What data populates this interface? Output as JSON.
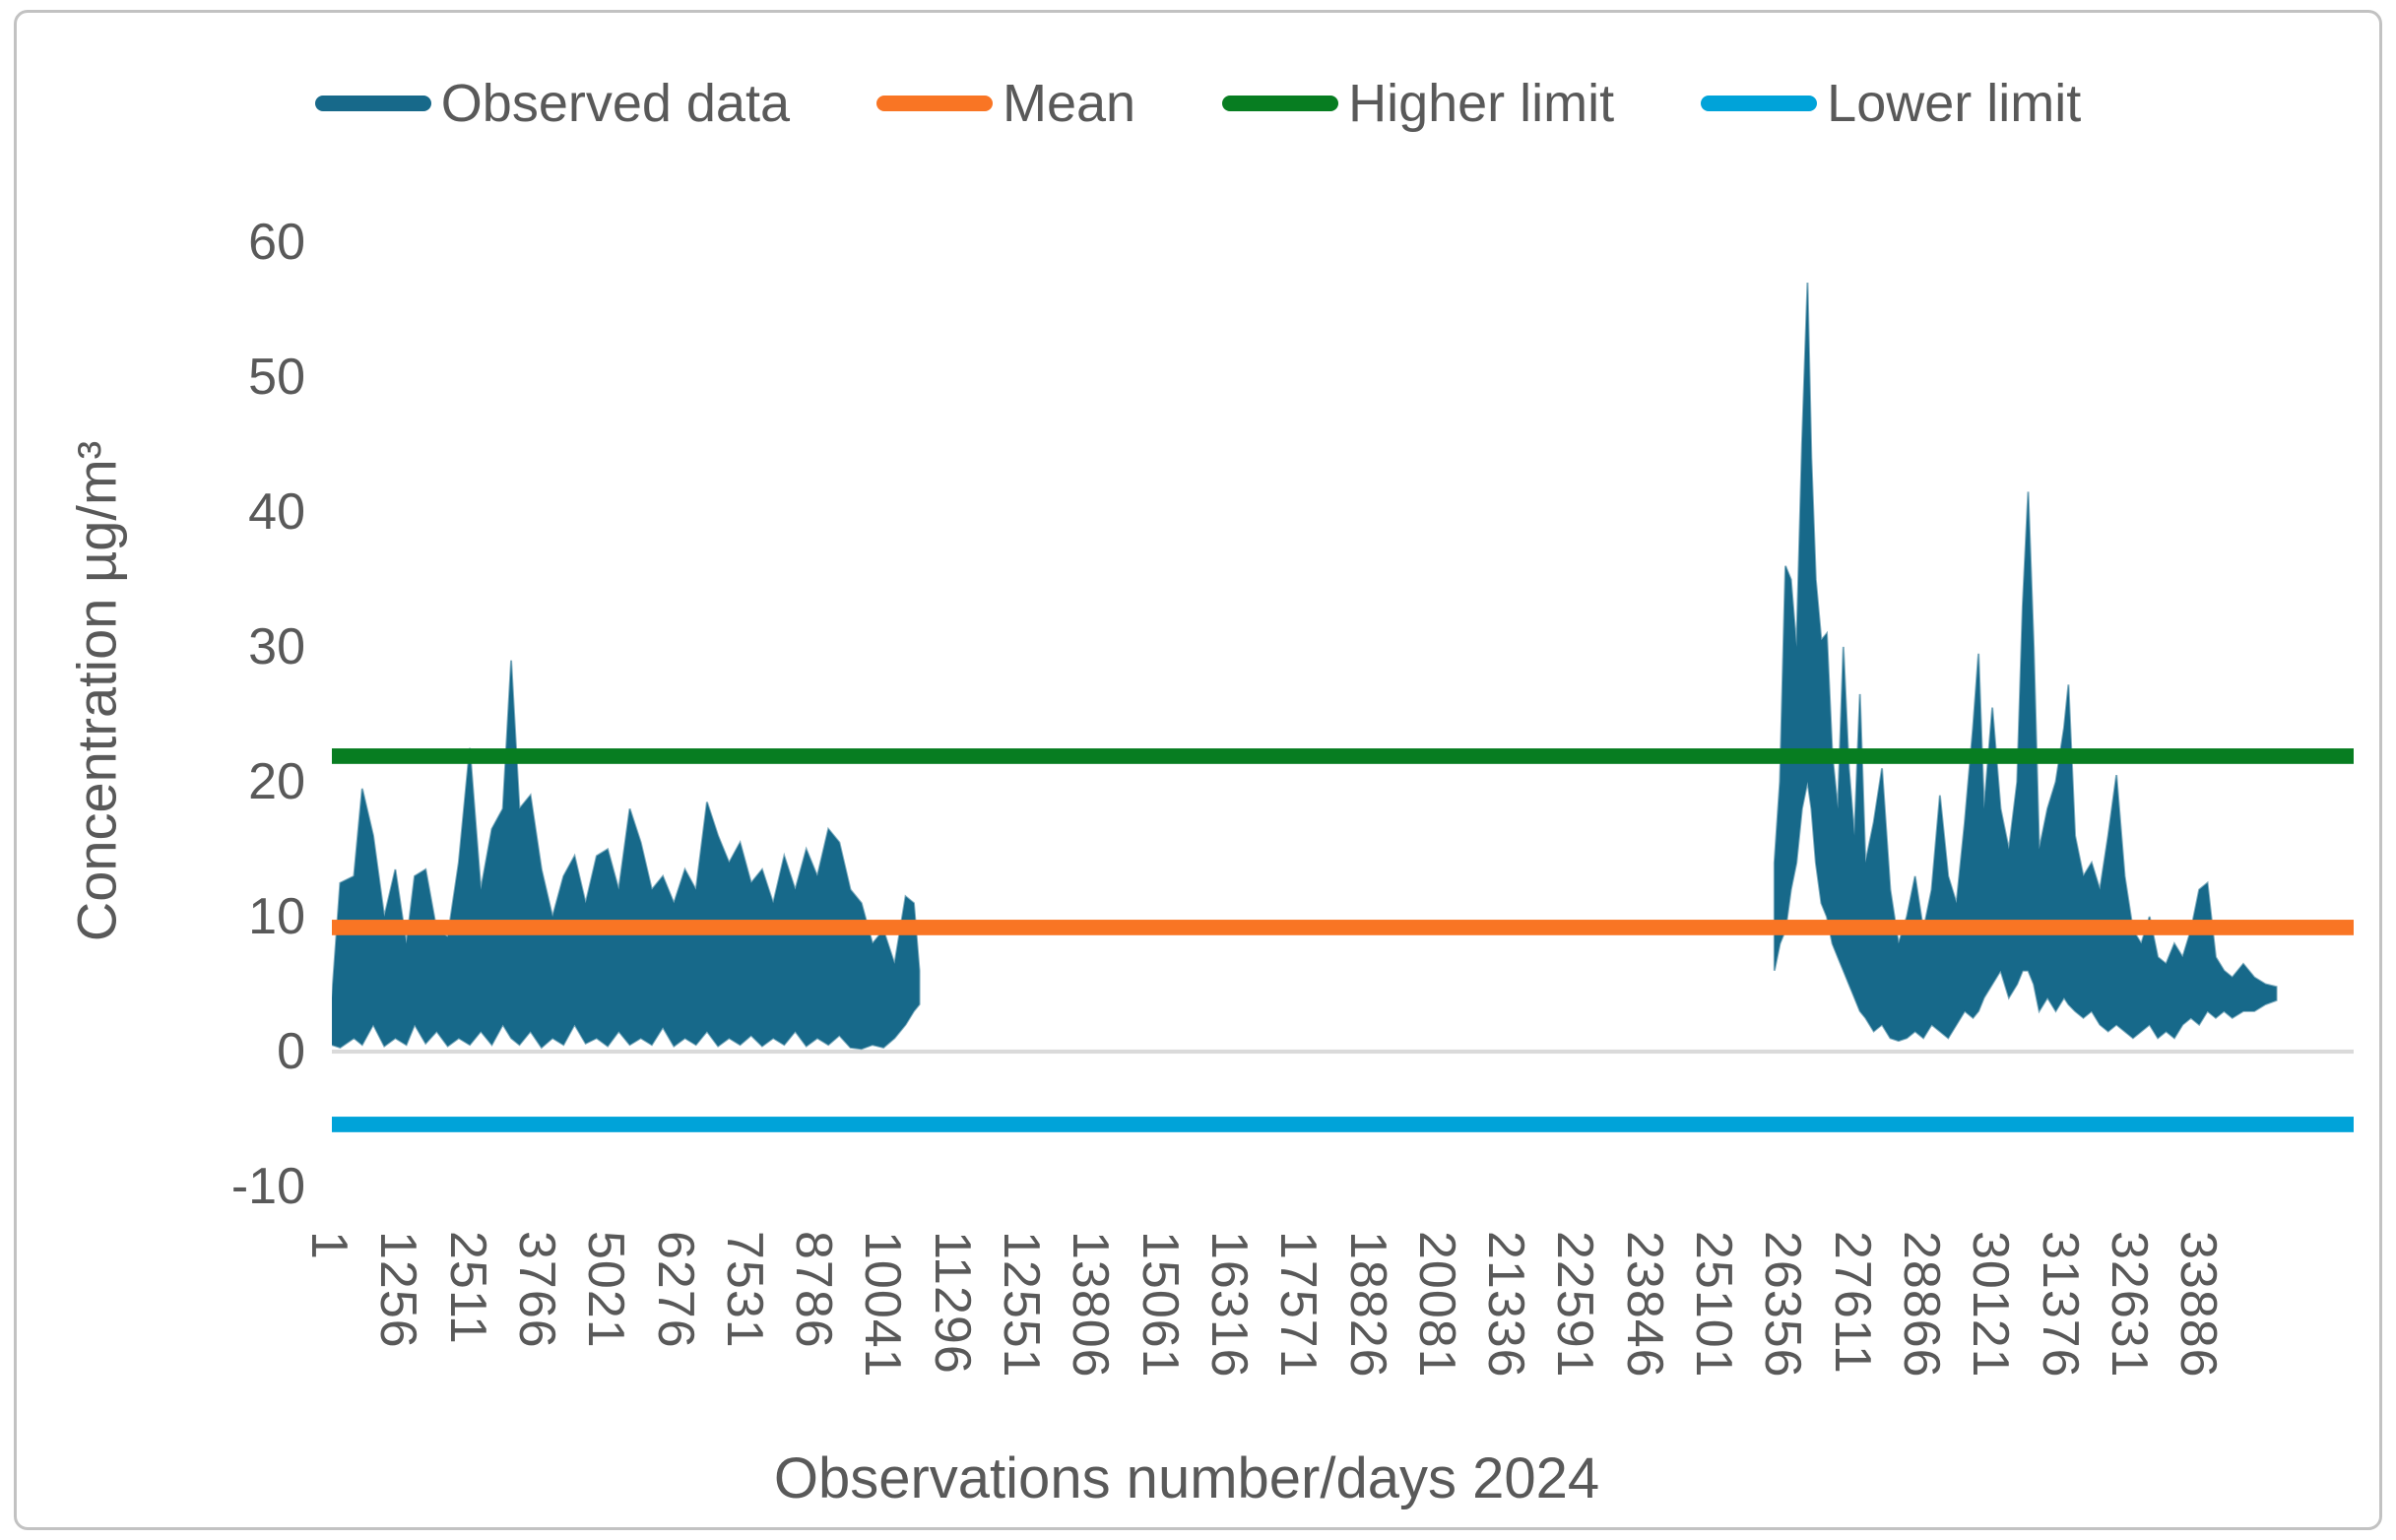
{
  "chart_data": {
    "type": "line",
    "title": "",
    "xlabel": "Observations number/days 2024",
    "ylabel": "Concentration µg/m³",
    "xlim": [
      0,
      36650
    ],
    "ylim": [
      -10,
      60
    ],
    "y_ticks": [
      60,
      50,
      40,
      30,
      20,
      10,
      0,
      -10
    ],
    "x_ticks": [
      1,
      1256,
      2511,
      3766,
      5021,
      6276,
      7531,
      8786,
      10041,
      11296,
      12551,
      13806,
      15061,
      16316,
      17571,
      18826,
      20081,
      21336,
      22591,
      23846,
      25101,
      26356,
      27611,
      28866,
      30121,
      31376,
      32631,
      33886
    ],
    "x_tick_rotation_deg": 90,
    "grid": "single light horizontal gridline at y=0",
    "legend_position": "top-center",
    "background": "#ffffff",
    "series": [
      {
        "name": "Observed data",
        "type": "noisy-line-envelope",
        "color": "#17698A",
        "points_format": "[x, min, max] bins downsampled from dense noisy observations; gap (no data) between x=10650 and x=26150",
        "points": [
          [
            1,
            0.5,
            4
          ],
          [
            150,
            0.3,
            12.5
          ],
          [
            400,
            1,
            13
          ],
          [
            550,
            0.5,
            19.5
          ],
          [
            750,
            2,
            16
          ],
          [
            950,
            0.4,
            10
          ],
          [
            1150,
            1,
            13.5
          ],
          [
            1350,
            0.5,
            8
          ],
          [
            1500,
            2,
            13
          ],
          [
            1700,
            0.6,
            13.5
          ],
          [
            1900,
            1.5,
            9
          ],
          [
            2100,
            0.4,
            8.5
          ],
          [
            2300,
            1,
            14
          ],
          [
            2500,
            0.5,
            22.5
          ],
          [
            2700,
            1.5,
            12
          ],
          [
            2900,
            0.5,
            16.5
          ],
          [
            3100,
            2,
            18
          ],
          [
            3250,
            1,
            29
          ],
          [
            3400,
            0.5,
            18
          ],
          [
            3600,
            1.5,
            19
          ],
          [
            3800,
            0.3,
            13.5
          ],
          [
            4000,
            1,
            10
          ],
          [
            4200,
            0.5,
            13
          ],
          [
            4400,
            2,
            14.5
          ],
          [
            4600,
            0.6,
            11
          ],
          [
            4800,
            1,
            14.5
          ],
          [
            5000,
            0.4,
            15
          ],
          [
            5200,
            1.5,
            12
          ],
          [
            5400,
            0.5,
            18
          ],
          [
            5600,
            1,
            15.5
          ],
          [
            5800,
            0.5,
            12
          ],
          [
            6000,
            1.8,
            13
          ],
          [
            6200,
            0.4,
            11
          ],
          [
            6400,
            1,
            13.5
          ],
          [
            6600,
            0.5,
            12
          ],
          [
            6800,
            1.5,
            18.5
          ],
          [
            7000,
            0.4,
            16
          ],
          [
            7200,
            1,
            14
          ],
          [
            7400,
            0.5,
            15.5
          ],
          [
            7600,
            1.2,
            12.5
          ],
          [
            7800,
            0.4,
            13.5
          ],
          [
            8000,
            1,
            11
          ],
          [
            8200,
            0.5,
            14.5
          ],
          [
            8400,
            1.5,
            12
          ],
          [
            8600,
            0.4,
            15
          ],
          [
            8800,
            1,
            13
          ],
          [
            9000,
            0.5,
            16.5
          ],
          [
            9200,
            1.2,
            15.5
          ],
          [
            9400,
            0.3,
            12
          ],
          [
            9600,
            0.2,
            11
          ],
          [
            9800,
            0.5,
            8
          ],
          [
            10000,
            0.3,
            9
          ],
          [
            10200,
            1,
            6.5
          ],
          [
            10400,
            2,
            11.5
          ],
          [
            10550,
            3,
            11
          ],
          [
            10650,
            3.5,
            6
          ],
          [
            26150,
            6,
            14
          ],
          [
            26250,
            8,
            20
          ],
          [
            26350,
            9,
            36
          ],
          [
            26450,
            12,
            35
          ],
          [
            26550,
            14,
            30
          ],
          [
            26650,
            18,
            45
          ],
          [
            26750,
            20,
            57
          ],
          [
            26820,
            18,
            44
          ],
          [
            26900,
            14,
            35
          ],
          [
            27000,
            11,
            30.5
          ],
          [
            27100,
            10,
            31
          ],
          [
            27200,
            8,
            22
          ],
          [
            27300,
            7,
            18
          ],
          [
            27400,
            6,
            30
          ],
          [
            27500,
            5,
            21
          ],
          [
            27600,
            4,
            16
          ],
          [
            27700,
            3,
            26.5
          ],
          [
            27800,
            2.5,
            14
          ],
          [
            27950,
            1.5,
            17
          ],
          [
            28100,
            2,
            21
          ],
          [
            28250,
            1,
            12
          ],
          [
            28400,
            0.8,
            8
          ],
          [
            28550,
            1,
            10
          ],
          [
            28700,
            1.5,
            13
          ],
          [
            28850,
            1,
            9
          ],
          [
            29000,
            2,
            12
          ],
          [
            29150,
            1.5,
            19
          ],
          [
            29300,
            1,
            13
          ],
          [
            29450,
            2,
            11
          ],
          [
            29600,
            3,
            17
          ],
          [
            29750,
            2.5,
            24
          ],
          [
            29850,
            3,
            29.5
          ],
          [
            29950,
            4,
            18
          ],
          [
            30100,
            5,
            25.5
          ],
          [
            30250,
            6,
            18
          ],
          [
            30400,
            4,
            15
          ],
          [
            30550,
            5,
            20
          ],
          [
            30650,
            6,
            33
          ],
          [
            30750,
            6,
            41.5
          ],
          [
            30850,
            5,
            30
          ],
          [
            30950,
            3,
            15
          ],
          [
            31100,
            4,
            18
          ],
          [
            31250,
            3,
            20
          ],
          [
            31400,
            4,
            24
          ],
          [
            31480,
            3.5,
            27.2
          ],
          [
            31600,
            3,
            16
          ],
          [
            31750,
            2.5,
            13
          ],
          [
            31900,
            3,
            14
          ],
          [
            32050,
            2,
            12
          ],
          [
            32200,
            1.5,
            16
          ],
          [
            32350,
            2,
            20.5
          ],
          [
            32500,
            1.5,
            13
          ],
          [
            32650,
            1,
            9
          ],
          [
            32800,
            1.5,
            8
          ],
          [
            32950,
            2,
            10
          ],
          [
            33100,
            1,
            7
          ],
          [
            33250,
            1.5,
            6.5
          ],
          [
            33400,
            1,
            8
          ],
          [
            33550,
            2,
            7
          ],
          [
            33700,
            2.5,
            9
          ],
          [
            33850,
            2,
            12
          ],
          [
            34000,
            3,
            12.5
          ],
          [
            34150,
            2.5,
            7
          ],
          [
            34300,
            3,
            6
          ],
          [
            34450,
            2.5,
            5.5
          ],
          [
            34650,
            3,
            6.5
          ],
          [
            34850,
            3,
            5.5
          ],
          [
            35050,
            3.5,
            5
          ],
          [
            35250,
            3.8,
            4.8
          ]
        ]
      },
      {
        "name": "Mean",
        "type": "constant-line",
        "color": "#F97524",
        "value": 9.2
      },
      {
        "name": "Higher limit",
        "type": "constant-line",
        "color": "#077D21",
        "value": 21.9
      },
      {
        "name": "Lower limit",
        "type": "constant-line",
        "color": "#00A3D9",
        "value": -5.4
      }
    ]
  },
  "colors": {
    "tick_text": "#595959",
    "zero_gridline": "#dadada",
    "frame_border": "#c2c2c2"
  }
}
